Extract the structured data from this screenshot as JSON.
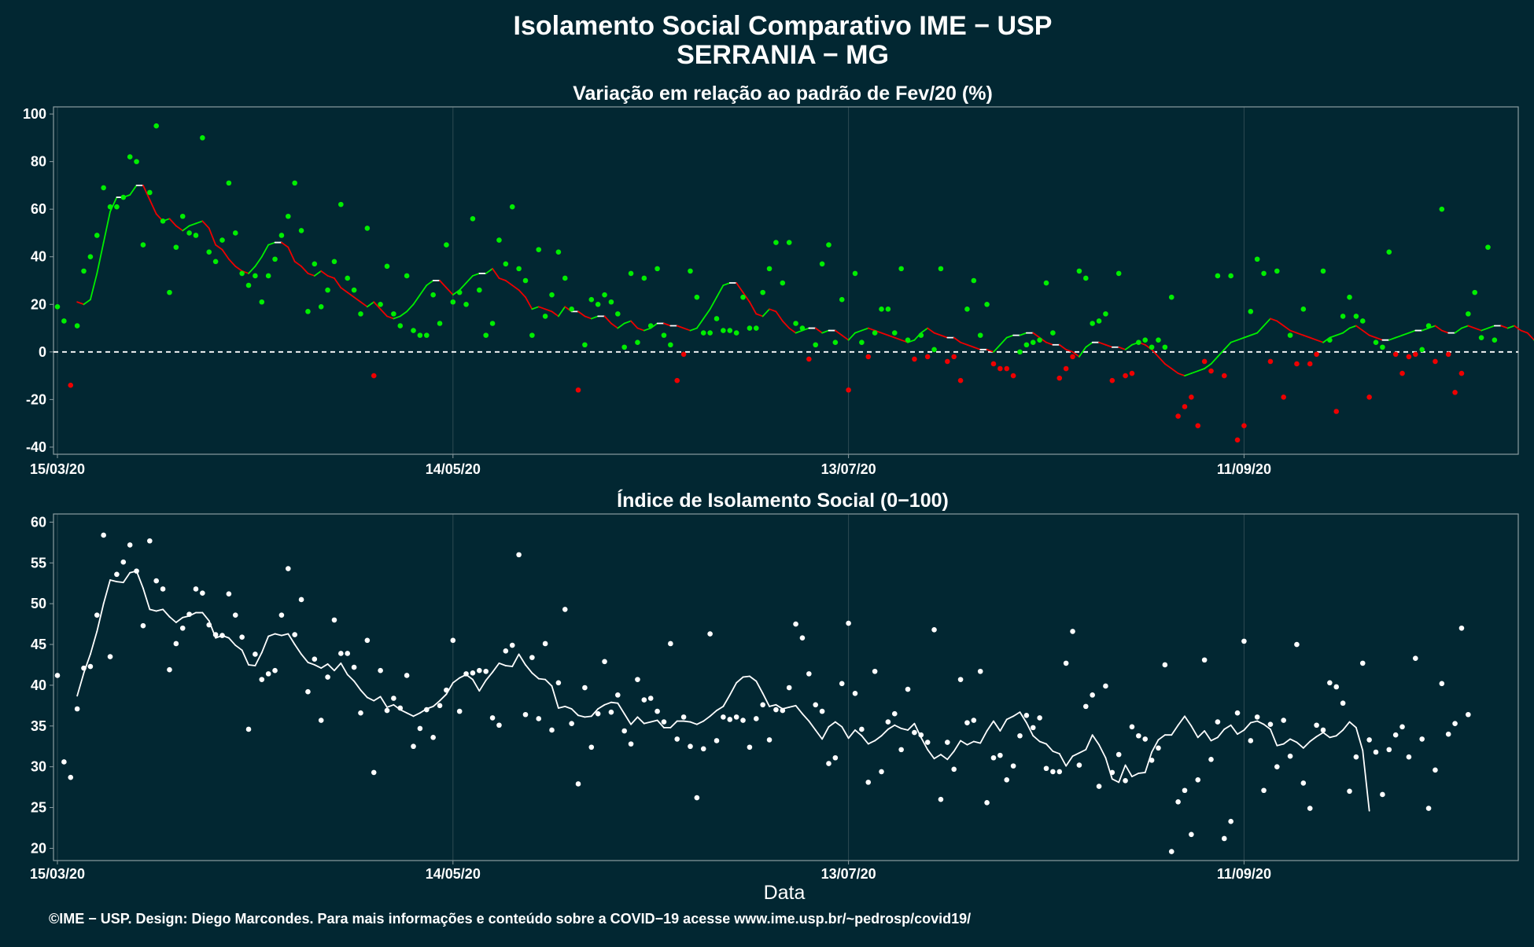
{
  "title_line1": "Isolamento Social Comparativo IME − USP",
  "title_line2": "SERRANIA − MG",
  "xlabel": "Data",
  "footer": "©IME − USP. Design: Diego Marcondes. Para mais informações e conteúdo sobre a COVID−19 acesse www.ime.usp.br/~pedrosp/covid19/",
  "colors": {
    "background": "#022732",
    "positive": "#00ee00",
    "negative": "#ee0000",
    "neutral": "#ffffff",
    "grid": "#2e4a52",
    "frame": "#8c9ca0"
  },
  "date_ticks": [
    {
      "label": "15/03/20",
      "day": 0
    },
    {
      "label": "14/05/20",
      "day": 60
    },
    {
      "label": "13/07/20",
      "day": 120
    },
    {
      "label": "11/09/20",
      "day": 180
    }
  ],
  "chart_data": [
    {
      "type": "scatter",
      "title": "Variação em relação ao padrão de Fev/20 (%)",
      "x_start": "15/03/20",
      "ylim": [
        -43,
        103
      ],
      "y_ticks": [
        100,
        80,
        60,
        40,
        20,
        0,
        -20,
        -40
      ],
      "reference_line": 0,
      "points": [
        19,
        13,
        -14,
        11,
        34,
        40,
        49,
        69,
        61,
        61,
        65,
        82,
        80,
        45,
        67,
        95,
        55,
        25,
        44,
        57,
        50,
        49,
        90,
        42,
        38,
        47,
        71,
        50,
        33,
        28,
        32,
        21,
        32,
        39,
        49,
        57,
        71,
        51,
        17,
        37,
        19,
        26,
        38,
        62,
        31,
        26,
        16,
        52,
        -10,
        20,
        36,
        16,
        11,
        32,
        9,
        7,
        7,
        24,
        12,
        45,
        21,
        25,
        20,
        56,
        26,
        7,
        12,
        47,
        37,
        61,
        35,
        30,
        7,
        43,
        15,
        24,
        42,
        31,
        18,
        -16,
        3,
        22,
        20,
        24,
        21,
        16,
        2,
        33,
        4,
        31,
        11,
        35,
        7,
        3,
        -12,
        -1,
        34,
        23,
        8,
        8,
        14,
        9,
        9,
        8,
        23,
        10,
        10,
        25,
        35,
        46,
        29,
        46,
        12,
        10,
        -3,
        3,
        37,
        45,
        4,
        22,
        -16,
        33,
        4,
        -2,
        8,
        18,
        18,
        8,
        35,
        5,
        -3,
        7,
        -2,
        1,
        35,
        -4,
        -2,
        -12,
        18,
        30,
        7,
        20,
        -5,
        -7,
        -7,
        -10,
        0,
        3,
        4,
        5,
        29,
        8,
        -11,
        -7,
        -2,
        34,
        31,
        12,
        13,
        16,
        -12,
        33,
        -10,
        -9,
        4,
        5,
        2,
        5,
        2,
        23,
        -27,
        -23,
        -19,
        -31,
        -4,
        -8,
        32,
        -10,
        32,
        -37,
        -31,
        17,
        39,
        33,
        -4,
        34,
        -19,
        7,
        -5,
        18,
        -5,
        -1,
        34,
        5,
        -25,
        15,
        23,
        15,
        13,
        -19,
        4,
        2,
        42,
        -1,
        -9,
        -2,
        -1,
        1,
        11,
        -4,
        60,
        -1,
        -17,
        -9,
        16,
        25,
        6,
        44,
        5
      ],
      "rolling_mean": [
        null,
        null,
        null,
        21,
        20,
        22,
        33,
        46,
        59,
        65,
        65,
        66,
        70,
        70,
        64,
        58,
        55,
        56,
        53,
        51,
        53,
        54,
        55,
        52,
        45,
        43,
        39,
        36,
        34,
        33,
        36,
        40,
        45,
        46,
        46,
        44,
        38,
        36,
        33,
        32,
        34,
        32,
        31,
        27,
        25,
        23,
        21,
        19,
        21,
        18,
        15,
        14,
        15,
        17,
        20,
        24,
        28,
        30,
        30,
        27,
        24,
        26,
        29,
        32,
        33,
        33,
        35,
        31,
        30,
        28,
        26,
        23,
        18,
        19,
        18,
        17,
        15,
        19,
        17,
        17,
        15,
        14,
        15,
        15,
        12,
        10,
        12,
        13,
        10,
        9,
        10,
        12,
        12,
        11,
        11,
        10,
        9,
        10,
        14,
        18,
        23,
        28,
        29,
        29,
        25,
        21,
        16,
        15,
        18,
        17,
        13,
        10,
        8,
        9,
        10,
        10,
        8,
        9,
        9,
        7,
        5,
        8,
        9,
        10,
        9,
        8,
        7,
        6,
        5,
        4,
        5,
        8,
        10,
        8,
        7,
        6,
        6,
        4,
        3,
        2,
        1,
        1,
        0,
        3,
        6,
        7,
        7,
        8,
        8,
        6,
        4,
        3,
        3,
        1,
        0,
        -2,
        2,
        4,
        4,
        3,
        2,
        2,
        1,
        3,
        4,
        3,
        1,
        -2,
        -5,
        -7,
        -9,
        -10,
        -9,
        -8,
        -7,
        -5,
        -2,
        1,
        4,
        5,
        6,
        7,
        8,
        11,
        14,
        13,
        11,
        9,
        8,
        7,
        6,
        5,
        4,
        6,
        7,
        8,
        10,
        11,
        9,
        7,
        6,
        5,
        5,
        6,
        7,
        8,
        9,
        9,
        10,
        11,
        9,
        8,
        8,
        10,
        11,
        10,
        9,
        10,
        11,
        11,
        10,
        11,
        9,
        8,
        5,
        6
      ]
    },
    {
      "type": "scatter",
      "title": "Índice de Isolamento Social (0−100)",
      "x_start": "15/03/20",
      "ylim": [
        18.5,
        61
      ],
      "y_ticks": [
        60,
        55,
        50,
        45,
        40,
        35,
        30,
        25,
        20
      ],
      "points": [
        41.2,
        30.6,
        28.7,
        37.1,
        42.1,
        42.3,
        48.6,
        58.4,
        43.5,
        53.6,
        55.1,
        57.2,
        54.0,
        47.3,
        57.7,
        52.8,
        51.8,
        41.9,
        45.1,
        47.0,
        48.7,
        51.8,
        51.3,
        47.4,
        46.2,
        46.1,
        51.2,
        48.6,
        45.9,
        34.6,
        43.8,
        40.7,
        41.4,
        41.8,
        48.6,
        54.3,
        46.2,
        50.5,
        39.2,
        43.2,
        35.7,
        41.0,
        48.0,
        43.9,
        43.9,
        42.2,
        36.6,
        45.5,
        29.3,
        41.8,
        36.9,
        38.4,
        37.2,
        41.2,
        32.5,
        34.7,
        37.0,
        33.6,
        37.5,
        39.4,
        45.5,
        36.8,
        41.4,
        41.5,
        41.8,
        41.7,
        36.0,
        35.1,
        44.2,
        44.9,
        56.0,
        36.4,
        43.4,
        35.9,
        45.1,
        34.5,
        40.3,
        49.3,
        35.3,
        27.9,
        39.7,
        32.4,
        36.5,
        42.9,
        36.7,
        38.8,
        34.4,
        32.8,
        40.7,
        38.2,
        38.4,
        36.8,
        35.5,
        45.1,
        33.4,
        36.1,
        32.5,
        26.2,
        32.2,
        46.3,
        33.2,
        36.1,
        35.8,
        36.1,
        35.7,
        32.4,
        35.9,
        37.6,
        33.3,
        37.0,
        36.9,
        39.7,
        47.5,
        45.8,
        41.4,
        37.6,
        36.8,
        30.4,
        31.1,
        40.2,
        47.6,
        39.0,
        34.6,
        28.1,
        41.7,
        29.4,
        35.5,
        36.5,
        32.1,
        39.5,
        34.2,
        33.9,
        33.0,
        46.8,
        26.0,
        33.0,
        29.7,
        40.7,
        35.4,
        35.7,
        41.7,
        25.6,
        31.1,
        31.4,
        28.4,
        30.1,
        33.8,
        36.3,
        34.8,
        36.0,
        29.8,
        29.4,
        29.4,
        42.7,
        46.6,
        30.2,
        37.4,
        38.8,
        27.6,
        39.9,
        29.3,
        31.5,
        28.3,
        34.9,
        33.8,
        33.4,
        30.8,
        32.3,
        42.5,
        19.6,
        25.7,
        27.1,
        21.7,
        28.4,
        43.1,
        30.9,
        35.5,
        21.2,
        23.3,
        36.6,
        45.4,
        33.2,
        36.1,
        27.1,
        35.2,
        30.0,
        35.7,
        31.3,
        45.0,
        28.0,
        24.9,
        35.1,
        34.5,
        40.3,
        39.8,
        37.8,
        27.0,
        31.2,
        42.7,
        33.3,
        31.8,
        26.6,
        32.1,
        33.9,
        34.9,
        31.2,
        43.3,
        33.4,
        24.9,
        29.6,
        40.2,
        34.0,
        35.3,
        47.0,
        36.4
      ],
      "rolling_mean": [
        null,
        null,
        null,
        38.7,
        41.5,
        43.8,
        46.6,
        50.0,
        52.9,
        52.7,
        52.6,
        53.8,
        54.0,
        51.9,
        49.3,
        49.1,
        49.3,
        48.4,
        47.7,
        48.3,
        48.5,
        48.9,
        48.9,
        47.9,
        45.8,
        46.1,
        45.8,
        44.9,
        44.3,
        42.5,
        42.4,
        44.0,
        46.0,
        46.3,
        46.1,
        46.3,
        45.0,
        43.8,
        42.8,
        42.5,
        42.1,
        42.6,
        41.8,
        42.7,
        41.3,
        40.5,
        39.4,
        38.5,
        38.1,
        38.6,
        37.3,
        37.6,
        37.0,
        36.6,
        36.2,
        36.6,
        37.1,
        37.4,
        38.1,
        38.9,
        40.3,
        40.9,
        41.3,
        40.7,
        39.3,
        40.6,
        41.6,
        42.7,
        42.4,
        42.3,
        43.8,
        42.5,
        41.5,
        40.8,
        40.7,
        39.9,
        37.2,
        37.4,
        37.1,
        36.3,
        36.1,
        36.2,
        37.1,
        37.6,
        37.9,
        37.8,
        36.5,
        35.2,
        36.1,
        35.3,
        35.5,
        35.7,
        34.8,
        34.8,
        35.6,
        35.6,
        35.5,
        35.2,
        35.6,
        36.2,
        36.9,
        37.4,
        38.8,
        40.3,
        41.0,
        41.1,
        40.5,
        39.0,
        37.4,
        37.6,
        37.1,
        37.3,
        37.5,
        36.5,
        35.6,
        34.5,
        33.4,
        34.9,
        35.5,
        34.9,
        33.5,
        34.5,
        33.8,
        32.8,
        33.2,
        33.8,
        34.6,
        35.1,
        34.7,
        34.5,
        35.3,
        33.6,
        32.1,
        31.0,
        31.5,
        30.9,
        31.9,
        33.2,
        32.7,
        33.1,
        32.9,
        34.4,
        35.6,
        34.4,
        35.8,
        36.2,
        36.7,
        35.4,
        33.8,
        33.1,
        32.8,
        31.9,
        31.6,
        30.1,
        31.3,
        31.7,
        32.1,
        33.9,
        32.7,
        31.1,
        28.5,
        28.1,
        30.2,
        28.8,
        29.2,
        29.3,
        31.8,
        33.3,
        33.9,
        33.9,
        35.1,
        36.2,
        35.0,
        33.6,
        34.4,
        33.2,
        33.6,
        34.6,
        35.1,
        34.0,
        34.5,
        35.4,
        35.6,
        35.2,
        34.6,
        32.6,
        32.8,
        33.4,
        33.0,
        32.3,
        33.1,
        33.7,
        34.2,
        33.6,
        33.8,
        34.5,
        35.5,
        34.8,
        32.0,
        24.6
      ]
    }
  ]
}
